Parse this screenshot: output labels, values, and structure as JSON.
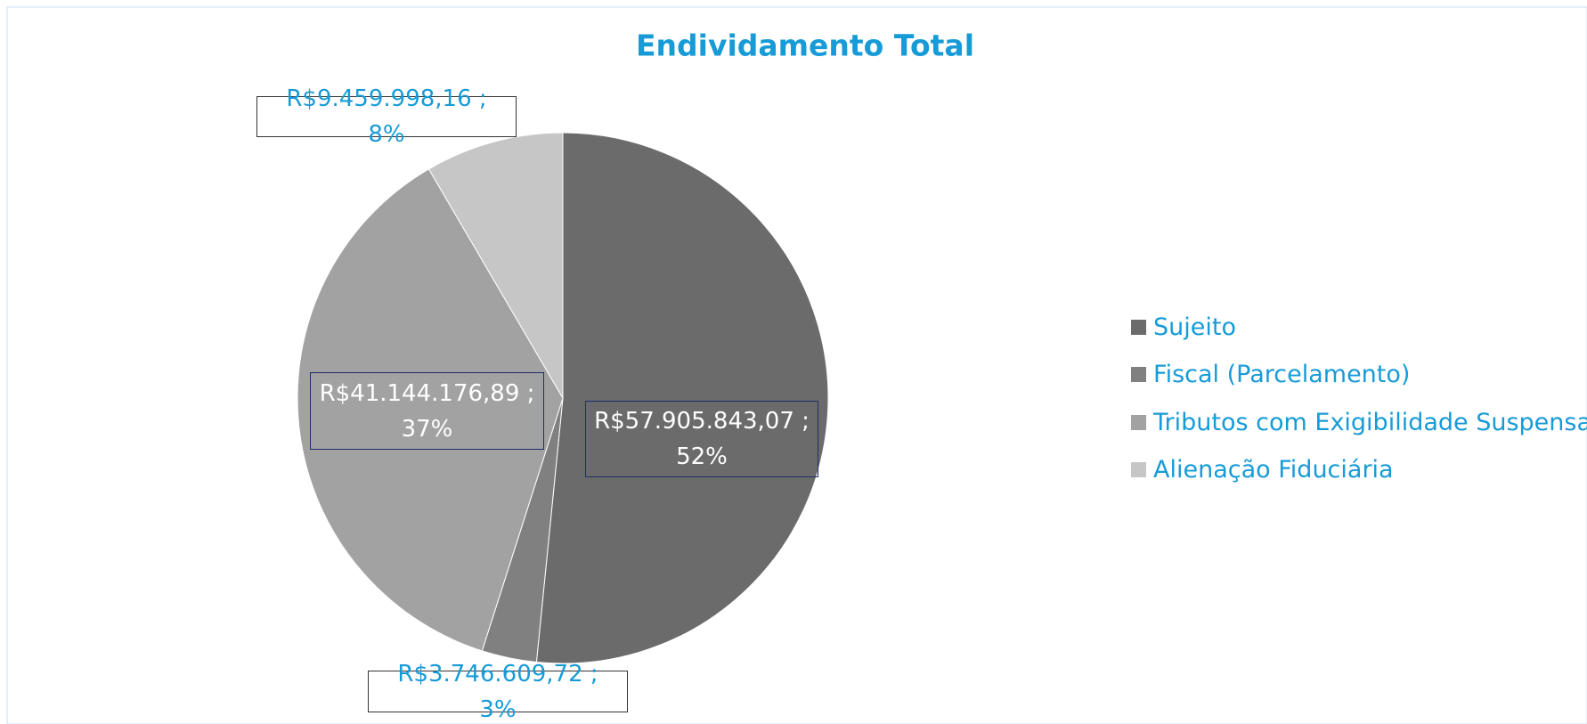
{
  "chart_data": {
    "type": "pie",
    "title": "Endividamento Total",
    "categories": [
      "Sujeito",
      "Fiscal (Parcelamento)",
      "Tributos com Exigibilidade Suspensa",
      "Alienação Fiduciária"
    ],
    "values": [
      57905843.07,
      3746609.72,
      41144176.89,
      9459998.16
    ],
    "value_labels": [
      "R$57.905.843,07 ; 52%",
      "R$3.746.609,72 ; 3%",
      "R$41.144.176,89 ; 37%",
      "R$9.459.998,16 ; 8%"
    ],
    "colors": [
      "#6b6b6b",
      "#808080",
      "#a2a2a2",
      "#c6c6c6"
    ],
    "legend": "right"
  }
}
